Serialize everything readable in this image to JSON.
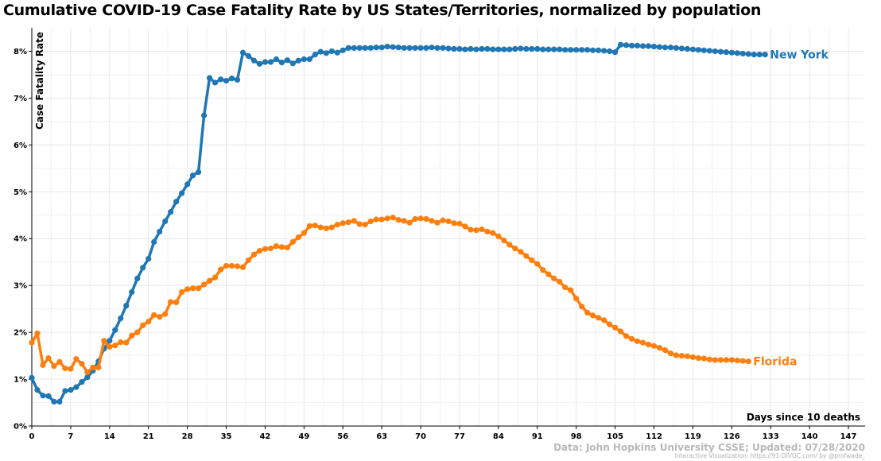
{
  "chart_data": {
    "type": "line",
    "title": "Cumulative COVID-19 Case Fatality Rate by US States/Territories, normalized by population",
    "xlabel": "Days since 10 deaths",
    "ylabel": "Case Fatality Rate",
    "xlim": [
      0,
      150
    ],
    "ylim": [
      0,
      8.5
    ],
    "x_ticks": [
      0,
      7,
      14,
      21,
      28,
      35,
      42,
      49,
      56,
      63,
      70,
      77,
      84,
      91,
      98,
      105,
      112,
      119,
      126,
      133,
      140,
      147
    ],
    "y_ticks": [
      0,
      1,
      2,
      3,
      4,
      5,
      6,
      7,
      8
    ],
    "y_tick_labels": [
      "0%",
      "1%",
      "2%",
      "3%",
      "4%",
      "5%",
      "6%",
      "7%",
      "8%"
    ],
    "grid": true,
    "series": [
      {
        "name": "New York",
        "color": "#1f77b4",
        "values": [
          1.03,
          0.77,
          0.65,
          0.64,
          0.52,
          0.52,
          0.75,
          0.77,
          0.83,
          0.94,
          1.04,
          1.18,
          1.38,
          1.65,
          1.82,
          2.05,
          2.3,
          2.57,
          2.86,
          3.15,
          3.38,
          3.57,
          3.93,
          4.15,
          4.37,
          4.57,
          4.79,
          4.97,
          5.16,
          5.35,
          5.42,
          6.63,
          7.43,
          7.33,
          7.4,
          7.37,
          7.42,
          7.39,
          7.97,
          7.9,
          7.8,
          7.73,
          7.77,
          7.77,
          7.83,
          7.76,
          7.81,
          7.74,
          7.8,
          7.83,
          7.83,
          7.93,
          7.99,
          7.96,
          8.0,
          7.97,
          8.02,
          8.07,
          8.07,
          8.07,
          8.07,
          8.07,
          8.08,
          8.08,
          8.1,
          8.09,
          8.08,
          8.07,
          8.07,
          8.07,
          8.07,
          8.07,
          8.08,
          8.07,
          8.07,
          8.06,
          8.05,
          8.05,
          8.04,
          8.05,
          8.04,
          8.05,
          8.05,
          8.04,
          8.04,
          8.04,
          8.04,
          8.05,
          8.06,
          8.05,
          8.05,
          8.05,
          8.04,
          8.04,
          8.04,
          8.04,
          8.03,
          8.03,
          8.03,
          8.03,
          8.03,
          8.02,
          8.02,
          8.01,
          8.0,
          7.98,
          8.14,
          8.13,
          8.12,
          8.12,
          8.11,
          8.11,
          8.1,
          8.09,
          8.08,
          8.08,
          8.07,
          8.06,
          8.05,
          8.04,
          8.03,
          8.02,
          8.01,
          8.0,
          7.99,
          7.98,
          7.97,
          7.96,
          7.95,
          7.94,
          7.93,
          7.93,
          7.93
        ]
      },
      {
        "name": "Florida",
        "color": "#ff7f0e",
        "values": [
          1.78,
          1.98,
          1.3,
          1.45,
          1.28,
          1.37,
          1.23,
          1.22,
          1.43,
          1.33,
          1.15,
          1.25,
          1.25,
          1.82,
          1.69,
          1.72,
          1.79,
          1.78,
          1.93,
          2.0,
          2.15,
          2.23,
          2.37,
          2.33,
          2.39,
          2.65,
          2.64,
          2.86,
          2.92,
          2.94,
          2.94,
          3.02,
          3.1,
          3.17,
          3.34,
          3.42,
          3.42,
          3.41,
          3.39,
          3.54,
          3.66,
          3.74,
          3.78,
          3.79,
          3.84,
          3.82,
          3.81,
          3.93,
          4.03,
          4.12,
          4.27,
          4.28,
          4.24,
          4.22,
          4.24,
          4.3,
          4.33,
          4.35,
          4.38,
          4.31,
          4.3,
          4.37,
          4.41,
          4.41,
          4.43,
          4.45,
          4.4,
          4.38,
          4.34,
          4.42,
          4.43,
          4.42,
          4.38,
          4.34,
          4.39,
          4.37,
          4.33,
          4.32,
          4.26,
          4.19,
          4.18,
          4.2,
          4.15,
          4.12,
          4.05,
          3.96,
          3.87,
          3.79,
          3.72,
          3.63,
          3.54,
          3.46,
          3.33,
          3.24,
          3.15,
          3.08,
          2.96,
          2.9,
          2.72,
          2.55,
          2.42,
          2.36,
          2.31,
          2.26,
          2.17,
          2.1,
          2.02,
          1.92,
          1.86,
          1.81,
          1.78,
          1.74,
          1.71,
          1.67,
          1.62,
          1.55,
          1.51,
          1.5,
          1.49,
          1.47,
          1.45,
          1.44,
          1.42,
          1.41,
          1.41,
          1.41,
          1.41,
          1.4,
          1.39,
          1.38
        ]
      }
    ]
  },
  "credits": {
    "data_source": "Data: John Hopkins University CSSE; Updated: 07/28/2020",
    "visualization": "Interactive Visualization: https://91-DIVOC.com/ by @profwade_"
  }
}
